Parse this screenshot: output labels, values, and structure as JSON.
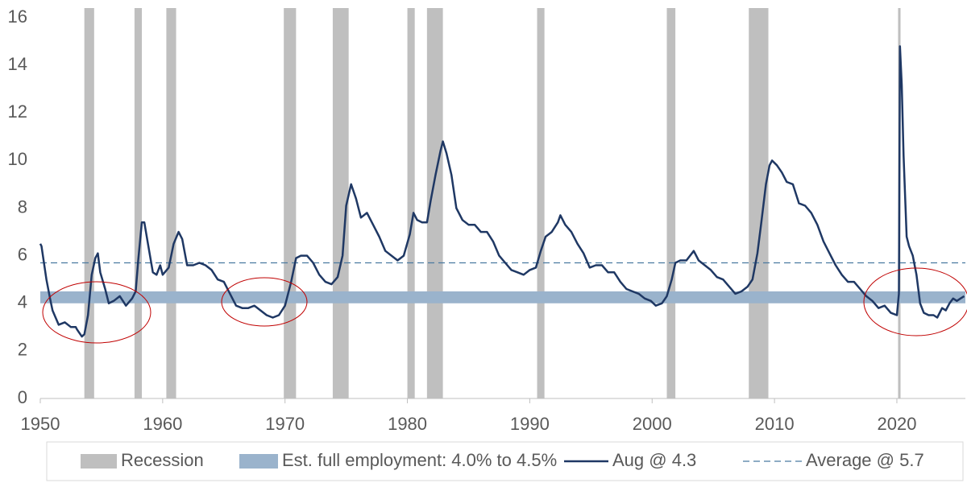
{
  "chart_data": {
    "type": "line",
    "x": [
      1950.0,
      1950.1,
      1950.5,
      1950.8,
      1951.0,
      1951.5,
      1952.0,
      1952.5,
      1952.9,
      1953.0,
      1953.4,
      1953.6,
      1953.9,
      1954.2,
      1954.5,
      1954.7,
      1954.9,
      1955.3,
      1955.6,
      1956.0,
      1956.5,
      1957.0,
      1957.5,
      1957.8,
      1958.0,
      1958.3,
      1958.5,
      1958.8,
      1959.2,
      1959.5,
      1959.8,
      1960.0,
      1960.5,
      1960.9,
      1961.3,
      1961.6,
      1962.0,
      1962.5,
      1963.0,
      1963.5,
      1964.0,
      1964.5,
      1965.0,
      1965.5,
      1966.0,
      1966.5,
      1967.0,
      1967.5,
      1968.0,
      1968.5,
      1969.0,
      1969.5,
      1970.0,
      1970.5,
      1970.9,
      1971.3,
      1971.8,
      1972.3,
      1972.8,
      1973.3,
      1973.8,
      1974.3,
      1974.7,
      1975.0,
      1975.4,
      1975.8,
      1976.2,
      1976.7,
      1977.2,
      1977.7,
      1978.2,
      1978.7,
      1979.2,
      1979.7,
      1980.2,
      1980.5,
      1980.8,
      1981.2,
      1981.6,
      1981.9,
      1982.3,
      1982.7,
      1982.9,
      1983.2,
      1983.6,
      1984.0,
      1984.5,
      1985.0,
      1985.5,
      1986.0,
      1986.5,
      1987.0,
      1987.5,
      1988.0,
      1988.5,
      1989.0,
      1989.5,
      1990.0,
      1990.5,
      1990.9,
      1991.3,
      1991.8,
      1992.3,
      1992.5,
      1992.9,
      1993.4,
      1993.9,
      1994.4,
      1994.9,
      1995.4,
      1995.9,
      1996.4,
      1996.9,
      1997.4,
      1997.9,
      1998.4,
      1998.9,
      1999.4,
      1999.9,
      2000.3,
      2000.8,
      2001.2,
      2001.6,
      2001.9,
      2002.3,
      2002.8,
      2003.4,
      2003.8,
      2004.3,
      2004.8,
      2005.3,
      2005.8,
      2006.3,
      2006.8,
      2007.3,
      2007.8,
      2008.2,
      2008.6,
      2008.9,
      2009.3,
      2009.6,
      2009.8,
      2010.2,
      2010.6,
      2011.0,
      2011.5,
      2012.0,
      2012.5,
      2013.0,
      2013.5,
      2014.0,
      2014.5,
      2015.0,
      2015.5,
      2016.0,
      2016.5,
      2017.0,
      2017.5,
      2018.0,
      2018.5,
      2019.0,
      2019.5,
      2020.0,
      2020.17,
      2020.25,
      2020.4,
      2020.55,
      2020.8,
      2021.0,
      2021.3,
      2021.6,
      2021.9,
      2022.2,
      2022.6,
      2023.0,
      2023.3,
      2023.7,
      2024.0,
      2024.3,
      2024.6,
      2024.9,
      2025.2,
      2025.5
    ],
    "series": [
      {
        "name": "Aug @ 4.3",
        "color": "#1f3864",
        "values": [
          6.5,
          6.4,
          5.0,
          4.2,
          3.7,
          3.1,
          3.2,
          3.0,
          3.0,
          2.9,
          2.6,
          2.7,
          3.5,
          5.2,
          5.9,
          6.1,
          5.3,
          4.6,
          4.0,
          4.1,
          4.3,
          3.9,
          4.2,
          4.5,
          5.8,
          7.4,
          7.4,
          6.5,
          5.3,
          5.2,
          5.6,
          5.2,
          5.5,
          6.5,
          7.0,
          6.7,
          5.6,
          5.6,
          5.7,
          5.6,
          5.4,
          5.0,
          4.9,
          4.4,
          3.9,
          3.8,
          3.8,
          3.9,
          3.7,
          3.5,
          3.4,
          3.5,
          3.9,
          4.9,
          5.9,
          6.0,
          6.0,
          5.7,
          5.2,
          4.9,
          4.8,
          5.1,
          6.0,
          8.1,
          9.0,
          8.4,
          7.6,
          7.8,
          7.3,
          6.8,
          6.2,
          6.0,
          5.8,
          6.0,
          6.9,
          7.8,
          7.5,
          7.4,
          7.4,
          8.3,
          9.4,
          10.4,
          10.8,
          10.3,
          9.4,
          8.0,
          7.5,
          7.3,
          7.3,
          7.0,
          7.0,
          6.6,
          6.0,
          5.7,
          5.4,
          5.3,
          5.2,
          5.4,
          5.5,
          6.2,
          6.8,
          7.0,
          7.4,
          7.7,
          7.3,
          7.0,
          6.5,
          6.1,
          5.5,
          5.6,
          5.6,
          5.3,
          5.3,
          4.9,
          4.6,
          4.5,
          4.4,
          4.2,
          4.1,
          3.9,
          4.0,
          4.3,
          5.0,
          5.7,
          5.8,
          5.8,
          6.2,
          5.8,
          5.6,
          5.4,
          5.1,
          5.0,
          4.7,
          4.4,
          4.5,
          4.7,
          5.0,
          6.1,
          7.3,
          9.0,
          9.8,
          10.0,
          9.8,
          9.5,
          9.1,
          9.0,
          8.2,
          8.1,
          7.8,
          7.3,
          6.6,
          6.1,
          5.6,
          5.2,
          4.9,
          4.9,
          4.6,
          4.3,
          4.1,
          3.8,
          3.9,
          3.6,
          3.5,
          4.4,
          14.8,
          13.2,
          10.2,
          6.8,
          6.4,
          6.0,
          5.2,
          4.0,
          3.6,
          3.5,
          3.5,
          3.4,
          3.8,
          3.7,
          4.0,
          4.2,
          4.1,
          4.2,
          4.3
        ]
      }
    ],
    "recession": {
      "name": "Recession",
      "color": "#bfbfbf",
      "periods": [
        [
          1953.6,
          1954.4
        ],
        [
          1957.7,
          1958.3
        ],
        [
          1960.3,
          1961.1
        ],
        [
          1969.9,
          1970.9
        ],
        [
          1973.9,
          1975.2
        ],
        [
          1980.0,
          1980.6
        ],
        [
          1981.6,
          1982.9
        ],
        [
          1990.6,
          1991.2
        ],
        [
          2001.2,
          2001.9
        ],
        [
          2007.9,
          2009.5
        ],
        [
          2020.1,
          2020.3
        ]
      ]
    },
    "full_employment": {
      "name": "Est. full employment: 4.0% to 4.5%",
      "color": "#9ab3cc",
      "range": [
        4.0,
        4.5
      ]
    },
    "average": {
      "name": "Average @ 5.7",
      "color": "#4a7aa0",
      "value": 5.7
    },
    "xlim": [
      1950,
      2025.6
    ],
    "xticks": [
      1950,
      1960,
      1970,
      1980,
      1990,
      2000,
      2010,
      2020
    ],
    "ylim": [
      0,
      16
    ],
    "yticks": [
      0,
      2,
      4,
      6,
      8,
      10,
      12,
      14,
      16
    ]
  }
}
